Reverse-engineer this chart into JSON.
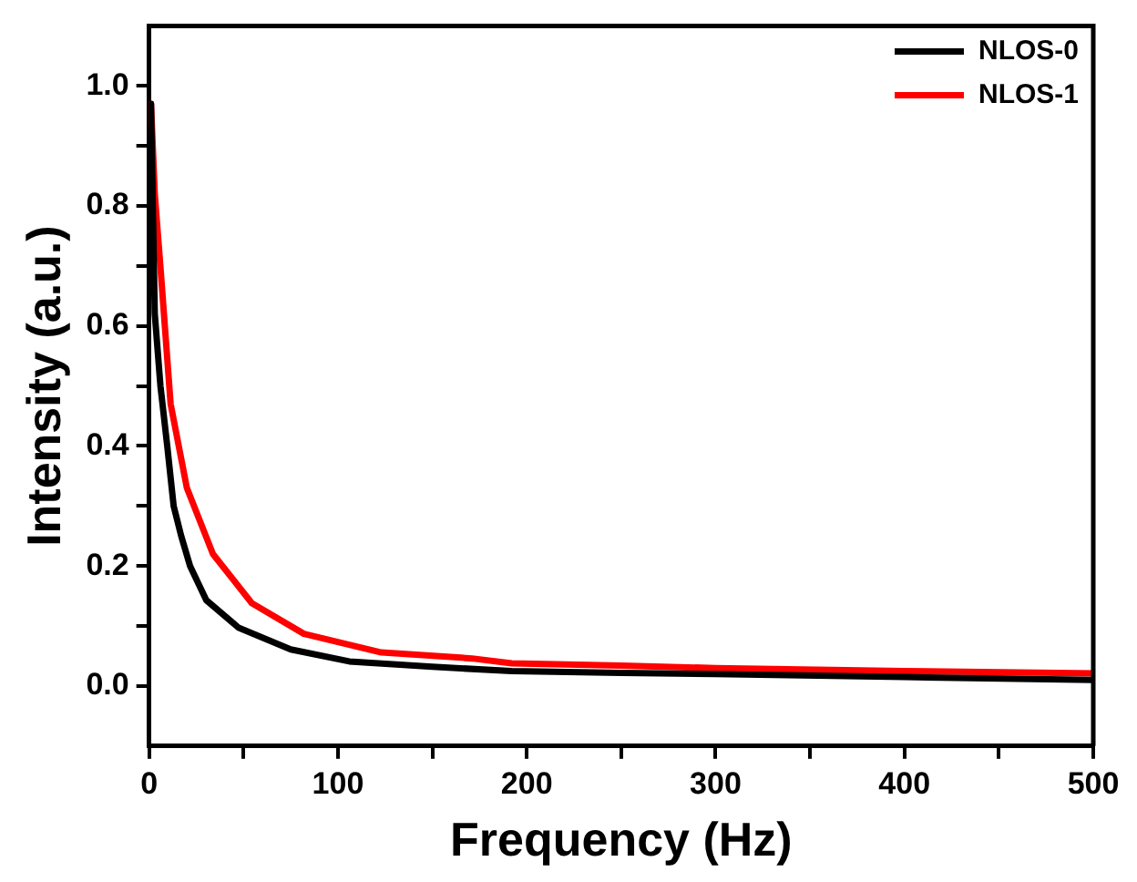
{
  "chart_data": {
    "type": "line",
    "xlabel": "Frequency (Hz)",
    "ylabel": "Intensity (a.u.)",
    "xlim": [
      0,
      500
    ],
    "ylim": [
      -0.1,
      1.1
    ],
    "xticks": [
      0,
      {
        "value": 50,
        "label": null
      },
      100,
      {
        "value": 150,
        "label": null
      },
      200,
      {
        "value": 250,
        "label": null
      },
      300,
      {
        "value": 350,
        "label": null
      },
      400,
      {
        "value": 450,
        "label": null
      },
      500
    ],
    "yticks": [
      {
        "value": 0,
        "label": "0.0"
      },
      {
        "value": 0.1,
        "label": null
      },
      {
        "value": 0.2,
        "label": "0.2"
      },
      {
        "value": 0.3,
        "label": null
      },
      {
        "value": 0.4,
        "label": "0.4"
      },
      {
        "value": 0.5,
        "label": null
      },
      {
        "value": 0.6,
        "label": "0.6"
      },
      {
        "value": 0.7,
        "label": null
      },
      {
        "value": 0.8,
        "label": "0.8"
      },
      {
        "value": 0.9,
        "label": null
      },
      {
        "value": 1.0,
        "label": "1.0"
      }
    ],
    "grid": false,
    "legend": "top right",
    "marker": "none",
    "line_style": "solid",
    "series": [
      {
        "name": "NLOS-0",
        "color": "#000000",
        "x": [
          1,
          3,
          6,
          9.6,
          13,
          17,
          21.7,
          30.3,
          47.5,
          75,
          106,
          150,
          192,
          250,
          300,
          400,
          500
        ],
        "values": [
          0.97,
          0.62,
          0.5,
          0.4,
          0.3,
          0.25,
          0.2,
          0.143,
          0.097,
          0.061,
          0.041,
          0.032,
          0.025,
          0.022,
          0.02,
          0.015,
          0.01
        ]
      },
      {
        "name": "NLOS-1",
        "color": "#ff0000",
        "x": [
          1,
          3,
          6.2,
          11.4,
          20,
          33.8,
          54.4,
          82,
          123,
          171,
          192,
          250,
          300,
          400,
          500
        ],
        "values": [
          0.97,
          0.82,
          0.69,
          0.47,
          0.33,
          0.22,
          0.138,
          0.087,
          0.056,
          0.046,
          0.038,
          0.034,
          0.03,
          0.025,
          0.021
        ]
      }
    ]
  }
}
